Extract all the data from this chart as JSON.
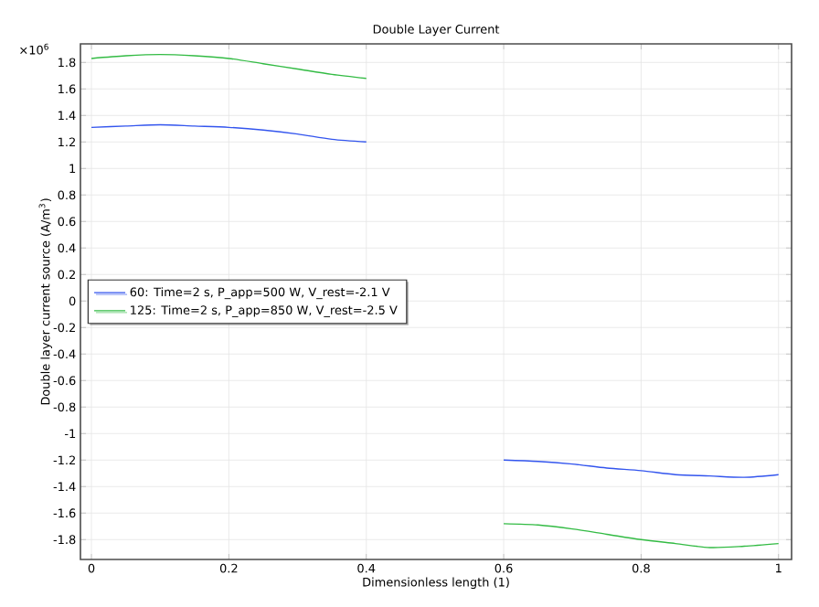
{
  "chart_data": {
    "type": "line",
    "title": "Double Layer Current",
    "xlabel": "Dimensionless length (1)",
    "ylabel": "Double layer current source (A/m$^{3}$)",
    "annotations": [
      "×10$^{6}$"
    ],
    "x": [
      0,
      0.05,
      0.1,
      0.15,
      0.2,
      0.25,
      0.3,
      0.35,
      0.4,
      0.5,
      0.6,
      0.65,
      0.7,
      0.75,
      0.8,
      0.85,
      0.9,
      0.95,
      1.0
    ],
    "series": [
      {
        "name": "60: Time=2 s, P_app=500 W, V_rest=-2.1 V",
        "color": "#3355ee",
        "values": [
          1.31,
          1.32,
          1.33,
          1.32,
          1.31,
          1.29,
          1.26,
          1.22,
          1.2,
          null,
          -1.2,
          -1.21,
          -1.23,
          -1.26,
          -1.28,
          -1.31,
          -1.32,
          -1.33,
          -1.31
        ]
      },
      {
        "name": "125: Time=2 s, P_app=850 W, V_rest=-2.5 V",
        "color": "#33bb44",
        "values": [
          1.83,
          1.85,
          1.86,
          1.85,
          1.83,
          1.79,
          1.75,
          1.71,
          1.68,
          null,
          -1.68,
          -1.69,
          -1.72,
          -1.76,
          -1.8,
          -1.83,
          -1.86,
          -1.85,
          -1.83
        ]
      }
    ],
    "xlim": [
      -0.016,
      1.019
    ],
    "ylim": [
      -1.95,
      1.94
    ],
    "xticks": [
      0,
      0.2,
      0.4,
      0.6,
      0.8,
      1
    ],
    "yticks": [
      -1.8,
      -1.6,
      -1.4,
      -1.2,
      -1,
      -0.8,
      -0.6,
      -0.4,
      -0.2,
      0,
      0.2,
      0.4,
      0.6,
      0.8,
      1,
      1.2,
      1.4,
      1.6,
      1.8
    ],
    "grid": true,
    "legend": "left",
    "marker": "none",
    "line_style": "solid"
  }
}
